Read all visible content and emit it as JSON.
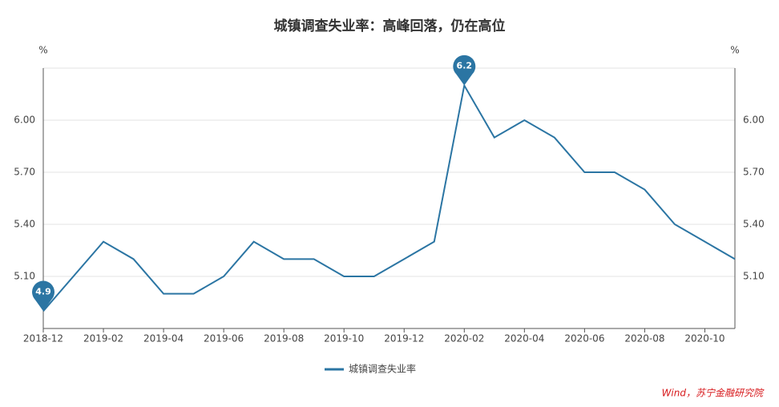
{
  "chart_data": {
    "type": "line",
    "title": "城镇调查失业率：高峰回落，仍在高位",
    "categories": [
      "2018-12",
      null,
      "2019-02",
      null,
      "2019-04",
      null,
      "2019-06",
      null,
      "2019-08",
      null,
      "2019-10",
      null,
      "2019-12",
      null,
      "2020-02",
      null,
      "2020-04",
      null,
      "2020-06",
      null,
      "2020-08",
      null,
      "2020-10",
      null
    ],
    "series": [
      {
        "name": "城镇调查失业率",
        "color": "#2b75a3",
        "values": [
          4.9,
          5.1,
          5.3,
          5.2,
          5.0,
          5.0,
          5.1,
          5.3,
          5.2,
          5.2,
          5.1,
          5.1,
          5.2,
          5.3,
          6.2,
          5.9,
          6.0,
          5.9,
          5.7,
          5.7,
          5.6,
          5.4,
          5.3,
          5.2
        ]
      }
    ],
    "mark_points": [
      "min",
      "max"
    ],
    "ylim": [
      4.8,
      6.3
    ],
    "yticks": [
      {
        "value": 5.1,
        "label": "5.10"
      },
      {
        "value": 5.4,
        "label": "5.40"
      },
      {
        "value": 5.7,
        "label": "5.70"
      },
      {
        "value": 6.0,
        "label": "6.00"
      }
    ],
    "y_unit": "%",
    "y2lim": [
      4.8,
      6.3
    ],
    "y2ticks": [
      {
        "value": 5.1,
        "label": "5.10"
      },
      {
        "value": 5.4,
        "label": "5.40"
      },
      {
        "value": 5.7,
        "label": "5.70"
      },
      {
        "value": 6.0,
        "label": "6.00"
      }
    ],
    "y2_unit": "%",
    "grid": true,
    "legend": "bottom",
    "source": "Wind，苏宁金融研究院"
  }
}
